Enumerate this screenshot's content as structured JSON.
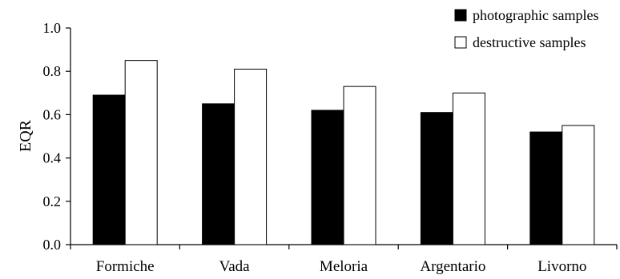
{
  "chart_data": {
    "type": "bar",
    "title": "",
    "xlabel": "",
    "ylabel": "EQR",
    "ylim": [
      0.0,
      1.0
    ],
    "yticks": [
      "0.0",
      "0.2",
      "0.4",
      "0.6",
      "0.8",
      "1.0"
    ],
    "categories": [
      "Formiche",
      "Vada",
      "Meloria",
      "Argentario",
      "Livorno"
    ],
    "series": [
      {
        "name": "photographic samples",
        "values": [
          0.69,
          0.65,
          0.62,
          0.61,
          0.52
        ],
        "color": "#000000"
      },
      {
        "name": "destructive samples",
        "values": [
          0.85,
          0.81,
          0.73,
          0.7,
          0.55
        ],
        "color": "#ffffff"
      }
    ],
    "grid": false,
    "legend_position": "top-right"
  }
}
